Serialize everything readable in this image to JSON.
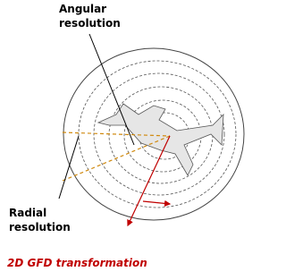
{
  "annotations": {
    "angular_resolution": [
      "Angular",
      "resolution"
    ],
    "radial_resolution": [
      "Radial",
      "resolution"
    ]
  },
  "caption": "2D GFD transformation"
}
